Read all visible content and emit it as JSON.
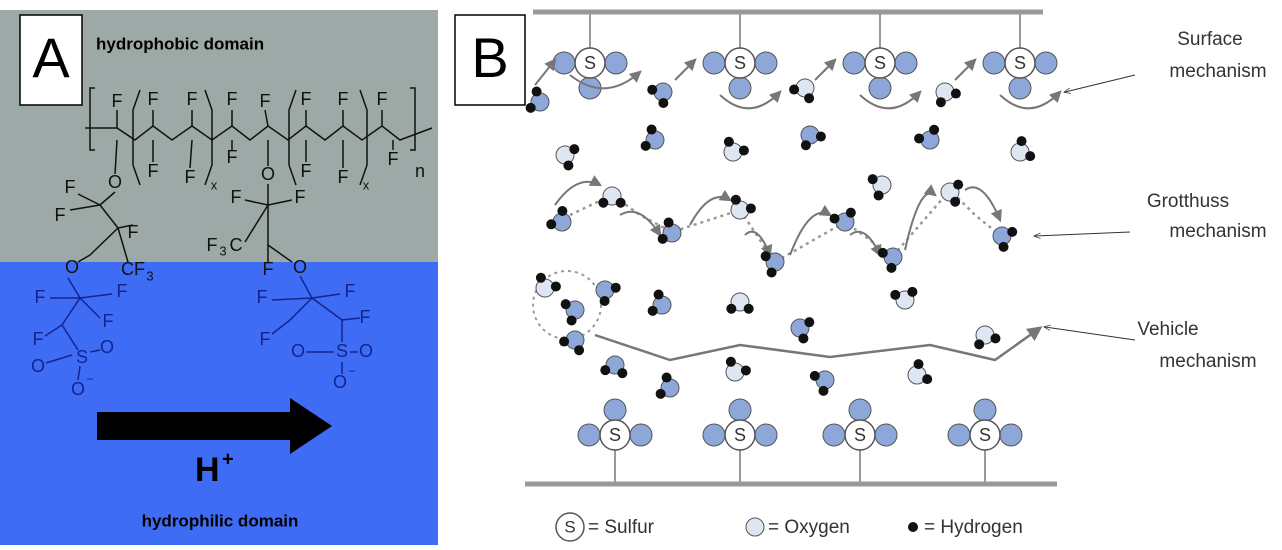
{
  "panel_a": {
    "label": "A",
    "top_domain": "hydrophobic domain",
    "bottom_domain": "hydrophilic domain",
    "proton": {
      "symbol": "H",
      "charge": "+"
    },
    "atoms": [
      "F",
      "F",
      "F",
      "F",
      "F",
      "F",
      "F",
      "F",
      "F",
      "F",
      "x",
      "F",
      "F",
      "F",
      "x",
      "F",
      "n",
      "O",
      "F",
      "F",
      "F",
      "O",
      "CF",
      "3",
      "O",
      "F",
      "F",
      "F",
      "3",
      "C",
      "F",
      "O",
      "F",
      "F",
      "F",
      "F",
      "S",
      "O",
      "O",
      "O",
      "−",
      "F",
      "F",
      "F",
      "F",
      "O",
      "S",
      "O",
      "O",
      "−"
    ]
  },
  "panel_b": {
    "label": "B",
    "sulfur_symbol": "S",
    "mechanisms": [
      {
        "lines": [
          "Surface",
          "mechanism"
        ]
      },
      {
        "lines": [
          "Grotthuss",
          "mechanism"
        ]
      },
      {
        "lines": [
          "Vehicle",
          "mechanism"
        ]
      }
    ],
    "legend": [
      {
        "symbol": "S",
        "text": "= Sulfur"
      },
      {
        "text": "= Oxygen"
      },
      {
        "text": "= Hydrogen"
      }
    ]
  }
}
